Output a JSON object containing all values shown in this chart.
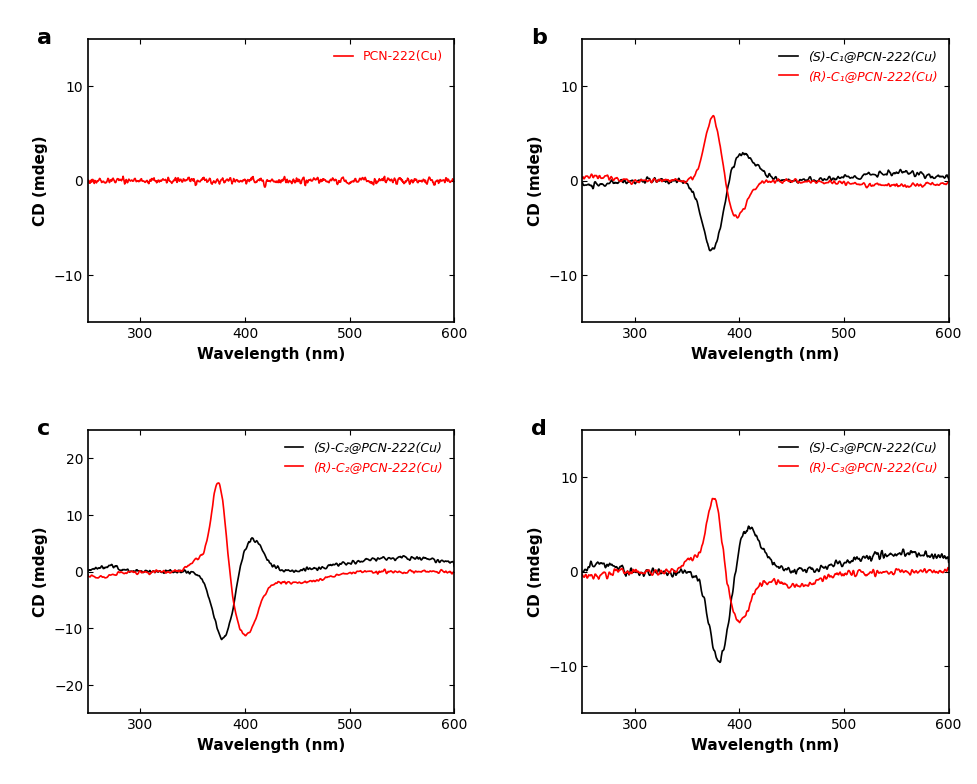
{
  "panel_labels": [
    "a",
    "b",
    "c",
    "d"
  ],
  "x_range": [
    250,
    600
  ],
  "xlabel": "Wavelength (nm)",
  "ylabel": "CD (mdeg)",
  "panel_a": {
    "ylim": [
      -15,
      15
    ],
    "yticks": [
      -10,
      0,
      10
    ],
    "legend": [
      "PCN-222(Cu)"
    ],
    "colors": [
      "#FF0000"
    ]
  },
  "panel_b": {
    "ylim": [
      -15,
      15
    ],
    "yticks": [
      -10,
      0,
      10
    ],
    "legend": [
      "(S)-C₁@PCN-222(Cu)",
      "(R)-C₁@PCN-222(Cu)"
    ],
    "colors": [
      "#000000",
      "#FF0000"
    ]
  },
  "panel_c": {
    "ylim": [
      -25,
      25
    ],
    "yticks": [
      -20,
      -10,
      0,
      10,
      20
    ],
    "legend": [
      "(S)-C₂@PCN-222(Cu)",
      "(R)-C₂@PCN-222(Cu)"
    ],
    "colors": [
      "#000000",
      "#FF0000"
    ]
  },
  "panel_d": {
    "ylim": [
      -15,
      15
    ],
    "yticks": [
      -10,
      0,
      10
    ],
    "legend": [
      "(S)-C₃@PCN-222(Cu)",
      "(R)-C₃@PCN-222(Cu)"
    ],
    "colors": [
      "#000000",
      "#FF0000"
    ]
  },
  "xticks": [
    300,
    400,
    500,
    600
  ],
  "background_color": "#FFFFFF",
  "linewidth": 1.2
}
